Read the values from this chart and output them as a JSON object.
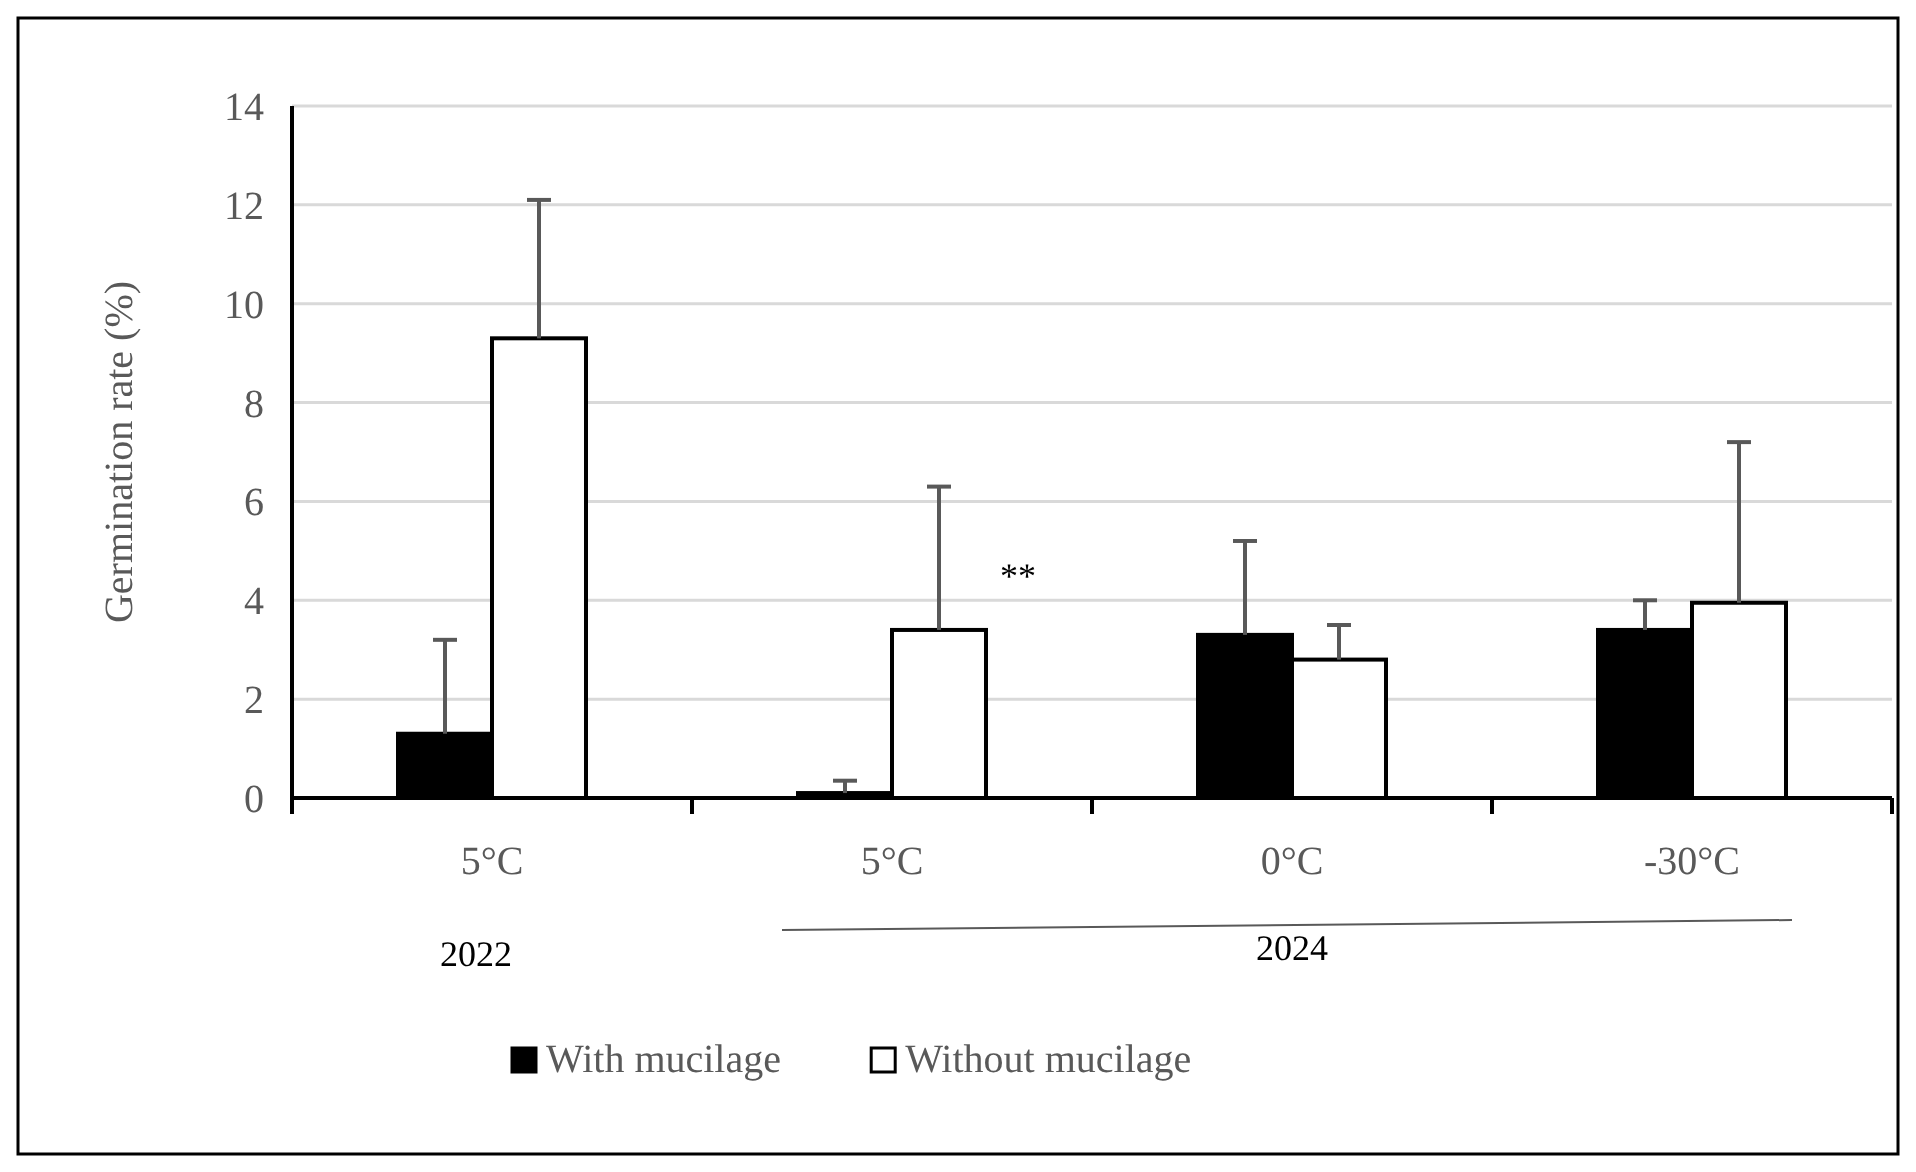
{
  "chart_data": {
    "type": "bar",
    "ylabel": "Germination rate (%)",
    "categories": [
      "5°C",
      "5°C",
      "0°C",
      "-30°C"
    ],
    "series": [
      {
        "name": "With mucilage",
        "color": "#000000",
        "values": [
          1.3,
          0.1,
          3.3,
          3.4
        ],
        "errors": [
          [
            1.3,
            3.2
          ],
          [
            0.1,
            0.35
          ],
          [
            3.3,
            5.2
          ],
          [
            3.4,
            4.0
          ]
        ]
      },
      {
        "name": "Without mucilage",
        "color": "#ffffff",
        "values": [
          9.3,
          3.4,
          2.8,
          3.95
        ],
        "errors": [
          [
            9.3,
            12.1
          ],
          [
            3.4,
            6.3
          ],
          [
            2.8,
            3.5
          ],
          [
            3.95,
            7.2
          ]
        ]
      }
    ],
    "ylim": [
      0,
      14
    ],
    "yticks": [
      0,
      2,
      4,
      6,
      8,
      10,
      12,
      14
    ],
    "grid": "y",
    "legend": "bottom",
    "annotations": [
      "**",
      "2022",
      "2024"
    ]
  }
}
